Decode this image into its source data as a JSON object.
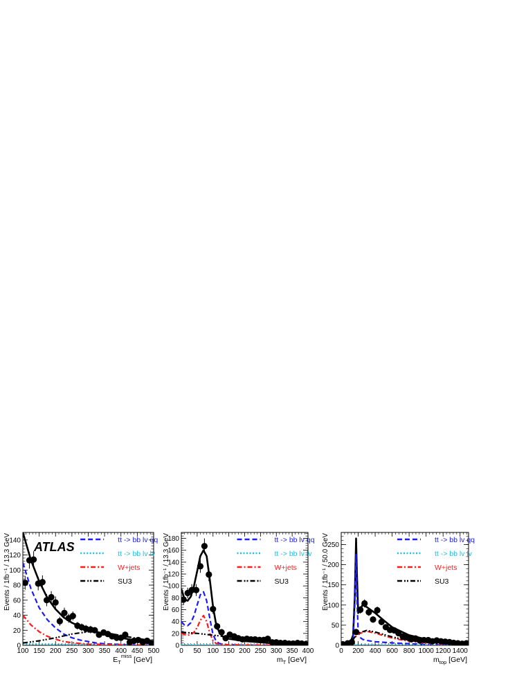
{
  "watermark": "ATLAS",
  "legend": {
    "entries": [
      {
        "label": "tt -> bb lv qq",
        "color": "#1a1aff",
        "dash": "dash"
      },
      {
        "label": "tt -> bb lv lv",
        "color": "#19c2e6",
        "dash": "dot"
      },
      {
        "label": "W+jets",
        "color": "#ff1a1a",
        "dash": "dashdot"
      },
      {
        "label": "SU3",
        "color": "#000000",
        "dash": "dashdotdot"
      }
    ]
  },
  "chart_data": [
    {
      "type": "line",
      "ylabel": "Events / 1fb⁻¹ / 13.3 GeV",
      "xlabel": "E_T^miss [GeV]",
      "xlim": [
        100,
        500
      ],
      "ylim": [
        0,
        150
      ],
      "xticks": [
        100,
        150,
        200,
        250,
        300,
        350,
        400,
        450,
        500
      ],
      "yticks": [
        0,
        20,
        40,
        60,
        80,
        100,
        120,
        140
      ],
      "points": {
        "name": "data",
        "x": [
          107,
          120,
          133,
          147,
          160,
          173,
          187,
          200,
          213,
          227,
          240,
          253,
          267,
          280,
          293,
          307,
          320,
          333,
          347,
          360,
          373,
          387,
          400,
          413,
          427,
          440,
          453,
          467,
          480,
          493
        ],
        "y": [
          83,
          113,
          114,
          82,
          84,
          60,
          64,
          57,
          32,
          43,
          36,
          39,
          26,
          24,
          22,
          21,
          20,
          14,
          17,
          15,
          12,
          10,
          10,
          14,
          4,
          6,
          7,
          4,
          6,
          3
        ],
        "err": [
          9,
          11,
          11,
          9,
          9,
          8,
          8,
          8,
          6,
          7,
          6,
          6,
          5,
          5,
          5,
          5,
          4,
          4,
          4,
          4,
          3,
          3,
          3,
          4,
          2,
          2,
          3,
          2,
          2,
          2
        ]
      },
      "series": [
        {
          "name": "Total fit",
          "x": [
            100,
            125,
            150,
            175,
            200,
            225,
            250,
            275,
            300,
            325,
            350,
            375,
            400,
            425,
            450,
            475,
            500
          ],
          "y": [
            150,
            113,
            85,
            63,
            48,
            37,
            30,
            25,
            21,
            18,
            15,
            12,
            10,
            8,
            6,
            5,
            4
          ]
        },
        {
          "name": "tt -> bb lv qq",
          "x": [
            100,
            125,
            150,
            175,
            200,
            225,
            250,
            275,
            300,
            325,
            350,
            400,
            450,
            500
          ],
          "y": [
            110,
            75,
            50,
            34,
            23,
            15,
            10,
            7,
            5,
            3,
            2,
            1,
            0.5,
            0.3
          ]
        },
        {
          "name": "tt -> bb lv lv",
          "x": [
            100,
            200,
            300,
            400,
            500
          ],
          "y": [
            2,
            1,
            0.5,
            0.3,
            0.1
          ]
        },
        {
          "name": "W+jets",
          "x": [
            100,
            125,
            150,
            175,
            200,
            225,
            250,
            275,
            300,
            350,
            400,
            450,
            500
          ],
          "y": [
            40,
            27,
            18,
            12,
            8,
            5,
            3.5,
            2.5,
            1.5,
            1,
            0.5,
            0.3,
            0.2
          ]
        },
        {
          "name": "SU3",
          "x": [
            100,
            150,
            200,
            250,
            300,
            350,
            400,
            450,
            500
          ],
          "y": [
            3,
            6,
            10,
            15,
            18,
            17,
            13,
            9,
            6
          ]
        }
      ]
    },
    {
      "type": "line",
      "ylabel": "Events / 1fb⁻¹ / 13.3 GeV",
      "xlabel": "m_T [GeV]",
      "xlim": [
        0,
        400
      ],
      "ylim": [
        0,
        190
      ],
      "xticks": [
        0,
        50,
        100,
        150,
        200,
        250,
        300,
        350,
        400
      ],
      "yticks": [
        0,
        20,
        40,
        60,
        80,
        100,
        120,
        140,
        160,
        180
      ],
      "points": {
        "name": "data",
        "x": [
          7,
          20,
          33,
          47,
          60,
          73,
          87,
          100,
          113,
          127,
          140,
          153,
          167,
          180,
          193,
          207,
          220,
          233,
          247,
          260,
          273,
          287,
          300,
          313,
          327,
          340,
          353,
          367,
          380,
          393
        ],
        "y": [
          77,
          88,
          93,
          93,
          133,
          167,
          119,
          61,
          32,
          22,
          12,
          18,
          15,
          12,
          10,
          11,
          10,
          10,
          9,
          9,
          11,
          5,
          5,
          4,
          4,
          3,
          3,
          4,
          3,
          2
        ],
        "err": [
          9,
          9,
          10,
          10,
          11,
          13,
          11,
          8,
          6,
          5,
          4,
          4,
          4,
          4,
          3,
          3,
          3,
          3,
          3,
          3,
          3,
          2,
          2,
          2,
          2,
          2,
          2,
          2,
          2,
          2
        ]
      },
      "series": [
        {
          "name": "Total fit",
          "x": [
            0,
            10,
            20,
            30,
            40,
            50,
            60,
            70,
            80,
            90,
            100,
            110,
            120,
            130,
            150,
            175,
            200,
            250,
            300,
            350,
            400
          ],
          "y": [
            95,
            78,
            75,
            82,
            100,
            125,
            150,
            160,
            150,
            110,
            65,
            35,
            22,
            15,
            11,
            9,
            7,
            5,
            3,
            2,
            1
          ]
        },
        {
          "name": "tt -> bb lv qq",
          "x": [
            0,
            10,
            20,
            30,
            40,
            50,
            60,
            70,
            80,
            90,
            100,
            110,
            120,
            140,
            200,
            300,
            400
          ],
          "y": [
            40,
            34,
            33,
            38,
            50,
            68,
            85,
            90,
            75,
            45,
            18,
            7,
            3,
            1,
            0.5,
            0.2,
            0.1
          ]
        },
        {
          "name": "tt -> bb lv lv",
          "x": [
            0,
            100,
            200,
            300,
            400
          ],
          "y": [
            1,
            0.8,
            0.5,
            0.3,
            0.1
          ]
        },
        {
          "name": "W+jets",
          "x": [
            0,
            10,
            20,
            30,
            40,
            50,
            60,
            70,
            80,
            90,
            100,
            110,
            130,
            200,
            400
          ],
          "y": [
            20,
            18,
            17,
            18,
            22,
            30,
            42,
            50,
            40,
            20,
            8,
            3,
            1,
            0.5,
            0.1
          ]
        },
        {
          "name": "SU3",
          "x": [
            0,
            50,
            100,
            150,
            200,
            250,
            300,
            350,
            400
          ],
          "y": [
            22,
            20,
            17,
            14,
            11,
            8,
            5,
            3,
            2
          ]
        }
      ]
    },
    {
      "type": "line",
      "ylabel": "Events / 1fb⁻¹ / 50.0 GeV",
      "xlabel": "m_top [GeV]",
      "xlim": [
        0,
        1500
      ],
      "ylim": [
        0,
        280
      ],
      "xticks": [
        0,
        200,
        400,
        600,
        800,
        1000,
        1200,
        1400
      ],
      "yticks": [
        0,
        50,
        100,
        150,
        200,
        250
      ],
      "points": {
        "name": "data",
        "x": [
          25,
          75,
          125,
          175,
          225,
          275,
          325,
          375,
          425,
          475,
          525,
          575,
          625,
          675,
          725,
          775,
          825,
          875,
          925,
          975,
          1025,
          1075,
          1125,
          1175,
          1225,
          1275,
          1325,
          1375,
          1425,
          1475
        ],
        "y": [
          2,
          5,
          8,
          33,
          88,
          104,
          82,
          64,
          87,
          58,
          45,
          38,
          37,
          30,
          22,
          20,
          15,
          17,
          12,
          13,
          13,
          10,
          12,
          10,
          9,
          8,
          6,
          5,
          4,
          5
        ],
        "err": [
          2,
          2,
          3,
          6,
          9,
          10,
          9,
          8,
          9,
          8,
          7,
          6,
          6,
          5,
          5,
          4,
          4,
          4,
          3,
          4,
          4,
          3,
          3,
          3,
          3,
          3,
          2,
          2,
          2,
          2
        ]
      },
      "series": [
        {
          "name": "Total fit",
          "x": [
            0,
            100,
            140,
            160,
            175,
            185,
            200,
            225,
            250,
            300,
            400,
            500,
            600,
            800,
            1000,
            1200,
            1400,
            1500
          ],
          "y": [
            0,
            3,
            25,
            120,
            265,
            180,
            80,
            88,
            100,
            95,
            80,
            62,
            45,
            25,
            15,
            10,
            7,
            6
          ]
        },
        {
          "name": "tt -> bb lv qq",
          "x": [
            0,
            100,
            140,
            160,
            175,
            185,
            200,
            220,
            250,
            300,
            400,
            600,
            800,
            1000,
            1500
          ],
          "y": [
            0,
            2,
            15,
            100,
            225,
            120,
            35,
            20,
            15,
            12,
            9,
            6,
            4,
            2,
            1
          ]
        },
        {
          "name": "tt -> bb lv lv",
          "x": [
            0,
            200,
            500,
            1000,
            1500
          ],
          "y": [
            0.5,
            1,
            0.5,
            0.3,
            0.1
          ]
        },
        {
          "name": "W+jets",
          "x": [
            0,
            100,
            200,
            300,
            400,
            500,
            600,
            700,
            800,
            1000,
            1200,
            1500
          ],
          "y": [
            0,
            5,
            28,
            35,
            30,
            24,
            18,
            14,
            10,
            5,
            3,
            1
          ]
        },
        {
          "name": "SU3",
          "x": [
            0,
            100,
            200,
            300,
            400,
            500,
            600,
            700,
            800,
            1000,
            1200,
            1500
          ],
          "y": [
            0,
            5,
            30,
            37,
            33,
            27,
            21,
            16,
            12,
            7,
            4,
            2
          ]
        }
      ]
    }
  ]
}
